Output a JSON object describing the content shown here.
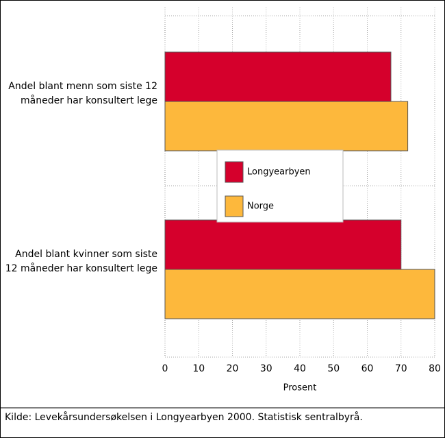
{
  "chart_data": {
    "type": "hbar",
    "categories": [
      "Andel blant menn som siste 12 måneder har konsultert lege",
      "Andel blant kvinner som siste 12 måneder har konsultert lege"
    ],
    "series": [
      {
        "name": "Longyearbyen",
        "color": "#d5002c",
        "values": [
          67,
          70
        ]
      },
      {
        "name": "Norge",
        "color": "#fdb83c",
        "values": [
          72,
          80
        ]
      }
    ],
    "xlim": [
      0,
      80
    ],
    "xticks": [
      0,
      10,
      20,
      30,
      40,
      50,
      60,
      70,
      80
    ],
    "xlabel": "Prosent",
    "grid": true,
    "legend": "center",
    "source": "Kilde: Levekårsundersøkelsen i Longyearbyen 2000. Statistisk sentralbyrå."
  }
}
